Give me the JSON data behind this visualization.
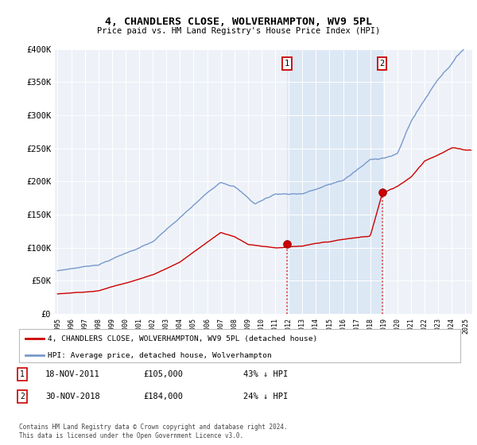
{
  "title": "4, CHANDLERS CLOSE, WOLVERHAMPTON, WV9 5PL",
  "subtitle": "Price paid vs. HM Land Registry's House Price Index (HPI)",
  "property_label": "4, CHANDLERS CLOSE, WOLVERHAMPTON, WV9 5PL (detached house)",
  "hpi_label": "HPI: Average price, detached house, Wolverhampton",
  "sale1_label": "18-NOV-2011",
  "sale1_price": "£105,000",
  "sale1_pct": "43% ↓ HPI",
  "sale2_label": "30-NOV-2018",
  "sale2_price": "£184,000",
  "sale2_pct": "24% ↓ HPI",
  "footnote": "Contains HM Land Registry data © Crown copyright and database right 2024.\nThis data is licensed under the Open Government Licence v3.0.",
  "property_color": "#cc0000",
  "hpi_color": "#7799cc",
  "shade_color": "#dde8f5",
  "background_color": "#ffffff",
  "plot_bg_color": "#eef2f8",
  "ylim": [
    0,
    400000
  ],
  "xlim_start": 1994.8,
  "xlim_end": 2025.5,
  "sale1_x": 2011.875,
  "sale1_y": 105000,
  "sale2_x": 2018.875,
  "sale2_y": 184000
}
